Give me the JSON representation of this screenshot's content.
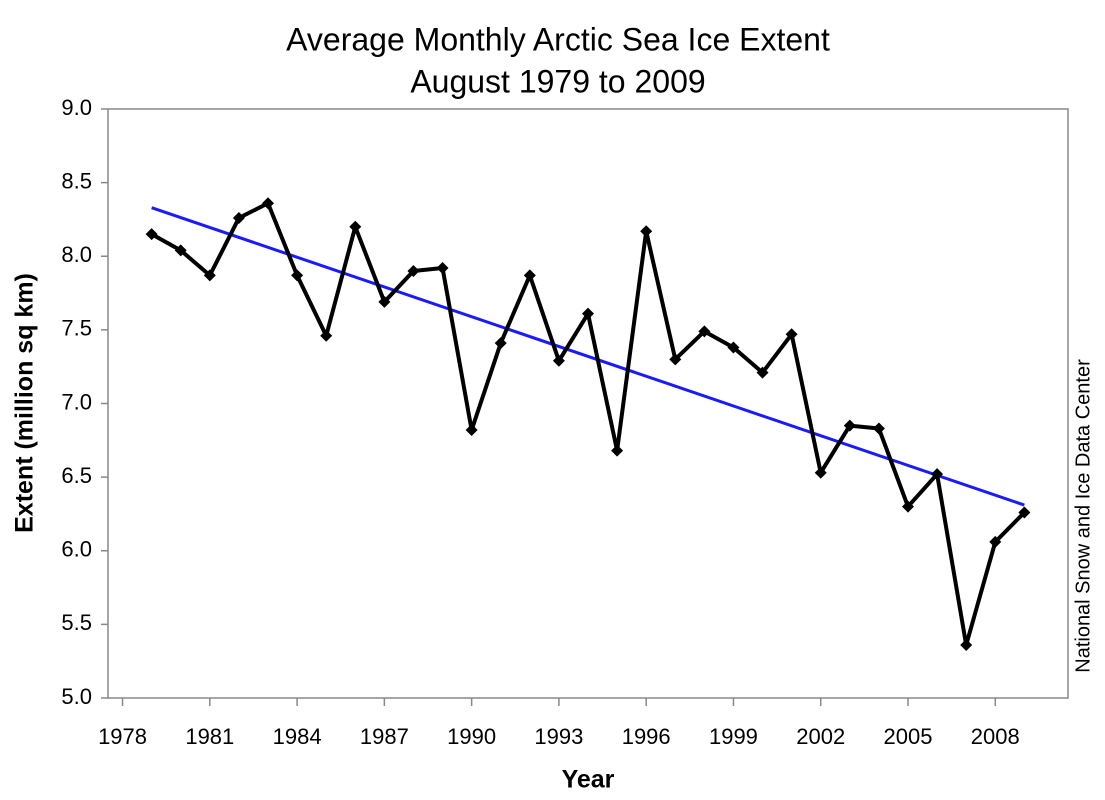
{
  "chart_data": {
    "type": "line",
    "title": "Average Monthly Arctic Sea Ice Extent",
    "subtitle": "August 1979 to 2009",
    "x_label": "Year",
    "y_label": "Extent (million sq km)",
    "source": "National Snow and Ice Data Center",
    "x": [
      1979,
      1980,
      1981,
      1982,
      1983,
      1984,
      1985,
      1986,
      1987,
      1988,
      1989,
      1990,
      1991,
      1992,
      1993,
      1994,
      1995,
      1996,
      1997,
      1998,
      1999,
      2000,
      2001,
      2002,
      2003,
      2004,
      2005,
      2006,
      2007,
      2008,
      2009
    ],
    "values": [
      8.15,
      8.04,
      7.87,
      8.26,
      8.36,
      7.87,
      7.46,
      8.2,
      7.69,
      7.9,
      7.92,
      6.82,
      7.41,
      7.87,
      7.29,
      7.61,
      6.68,
      8.17,
      7.3,
      7.49,
      7.38,
      7.21,
      7.47,
      6.53,
      6.85,
      6.83,
      6.3,
      6.52,
      5.36,
      6.06,
      6.26
    ],
    "color": "#000000",
    "trend": {
      "x": [
        1979,
        2009
      ],
      "values": [
        8.33,
        6.31
      ],
      "color": "#1a1aff"
    },
    "xlim": [
      1977.5,
      2010.5
    ],
    "xticks": [
      1978,
      1981,
      1984,
      1987,
      1990,
      1993,
      1996,
      1999,
      2002,
      2005,
      2008
    ],
    "ylim": [
      5,
      9
    ],
    "yticks": [
      {
        "value": 5,
        "label": "5.0"
      },
      {
        "value": 5.5,
        "label": "5.5"
      },
      {
        "value": 6,
        "label": "6.0"
      },
      {
        "value": 6.5,
        "label": "6.5"
      },
      {
        "value": 7,
        "label": "7.0"
      },
      {
        "value": 7.5,
        "label": "7.5"
      },
      {
        "value": 8,
        "label": "8.0"
      },
      {
        "value": 8.5,
        "label": "8.5"
      },
      {
        "value": 9,
        "label": "9.0"
      }
    ],
    "grid": false
  }
}
